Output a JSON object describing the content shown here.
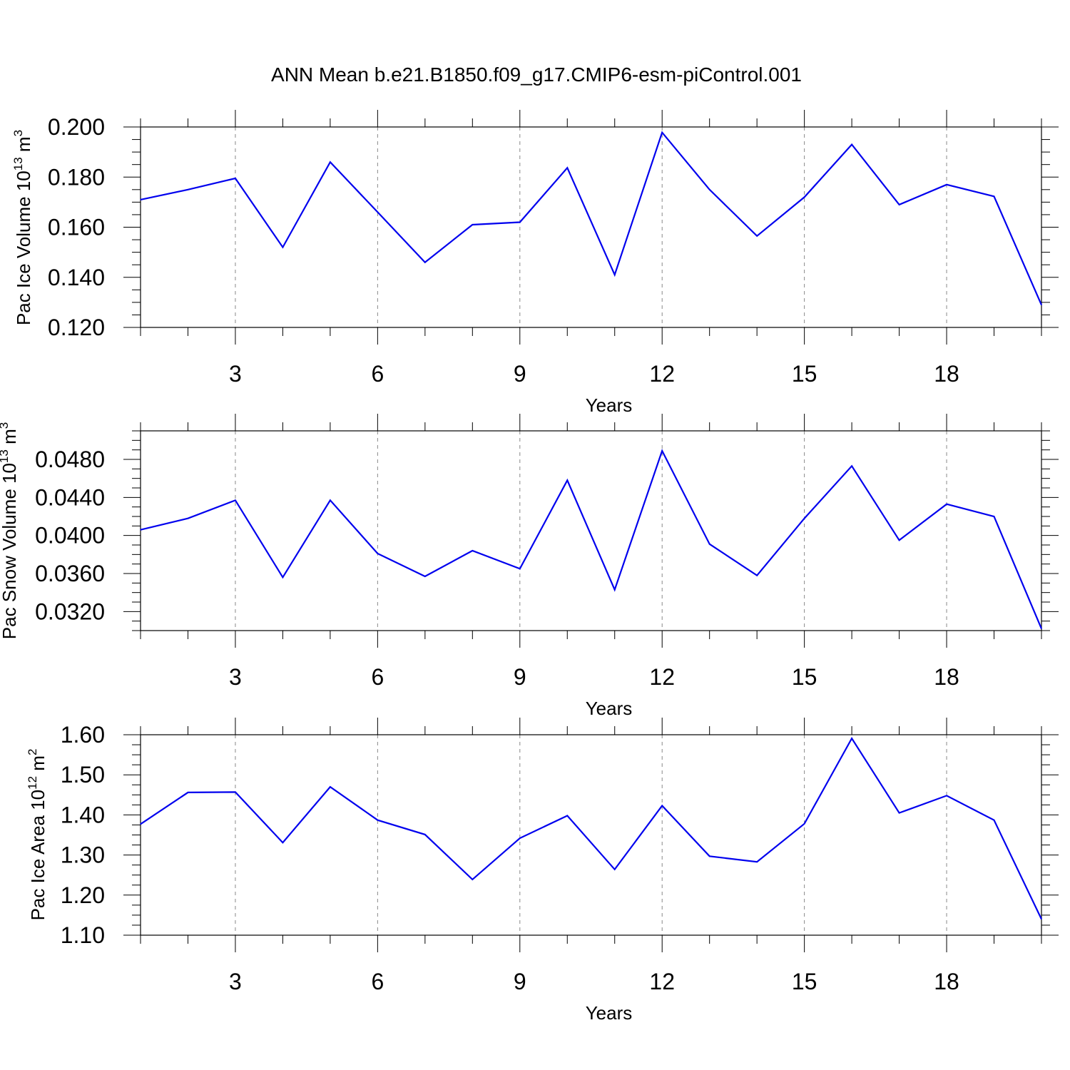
{
  "title": "ANN Mean b.e21.B1850.f09_g17.CMIP6-esm-piControl.001",
  "colors": {
    "line": "#0000ee",
    "axis": "#000000",
    "grid": "#888888"
  },
  "chart_data": [
    {
      "type": "line",
      "xlabel": "Years",
      "ylabel": {
        "prefix": "Pac Ice Volume 10",
        "exp": "13",
        "unit": " m",
        "unit_exp": "3"
      },
      "xlim": [
        1,
        20
      ],
      "ylim": [
        0.12,
        0.2
      ],
      "xticks": [
        "3",
        "6",
        "9",
        "12",
        "15",
        "18"
      ],
      "yticks": [
        "0.120",
        "0.140",
        "0.160",
        "0.180",
        "0.200"
      ],
      "grid": "vertical dashed at major x ticks",
      "x": [
        1,
        2,
        3,
        4,
        5,
        6,
        7,
        8,
        9,
        10,
        11,
        12,
        13,
        14,
        15,
        16,
        17,
        18,
        19,
        20
      ],
      "series": [
        {
          "values": [
            0.171,
            0.175,
            0.1795,
            0.152,
            0.186,
            0.166,
            0.146,
            0.161,
            0.162,
            0.1837,
            0.141,
            0.1978,
            0.175,
            0.1565,
            0.172,
            0.193,
            0.169,
            0.177,
            0.1723,
            0.129
          ]
        }
      ]
    },
    {
      "type": "line",
      "xlabel": "Years",
      "ylabel": {
        "prefix": "Pac Snow Volume 10",
        "exp": "13",
        "unit": " m",
        "unit_exp": "3"
      },
      "xlim": [
        1,
        20
      ],
      "ylim": [
        0.03,
        0.051
      ],
      "xticks": [
        "3",
        "6",
        "9",
        "12",
        "15",
        "18"
      ],
      "yticks": [
        "0.0320",
        "0.0360",
        "0.0400",
        "0.0440",
        "0.0480"
      ],
      "grid": "vertical dashed at major x ticks",
      "x": [
        1,
        2,
        3,
        4,
        5,
        6,
        7,
        8,
        9,
        10,
        11,
        12,
        13,
        14,
        15,
        16,
        17,
        18,
        19,
        20
      ],
      "series": [
        {
          "values": [
            0.0406,
            0.0418,
            0.0437,
            0.0356,
            0.0437,
            0.0381,
            0.0357,
            0.0384,
            0.0365,
            0.0458,
            0.0343,
            0.0489,
            0.0391,
            0.0358,
            0.0418,
            0.0473,
            0.0395,
            0.0433,
            0.042,
            0.0302
          ]
        }
      ]
    },
    {
      "type": "line",
      "xlabel": "Years",
      "ylabel": {
        "prefix": "Pac Ice Area 10",
        "exp": "12",
        "unit": " m",
        "unit_exp": "2"
      },
      "xlim": [
        1,
        20
      ],
      "ylim": [
        1.1,
        1.6
      ],
      "xticks": [
        "3",
        "6",
        "9",
        "12",
        "15",
        "18"
      ],
      "yticks": [
        "1.10",
        "1.20",
        "1.30",
        "1.40",
        "1.50",
        "1.60"
      ],
      "grid": "vertical dashed at major x ticks",
      "x": [
        1,
        2,
        3,
        4,
        5,
        6,
        7,
        8,
        9,
        10,
        11,
        12,
        13,
        14,
        15,
        16,
        17,
        18,
        19,
        20
      ],
      "series": [
        {
          "values": [
            1.377,
            1.456,
            1.457,
            1.331,
            1.47,
            1.387,
            1.351,
            1.239,
            1.342,
            1.398,
            1.264,
            1.423,
            1.297,
            1.283,
            1.378,
            1.591,
            1.405,
            1.448,
            1.387,
            1.14
          ]
        }
      ]
    }
  ]
}
